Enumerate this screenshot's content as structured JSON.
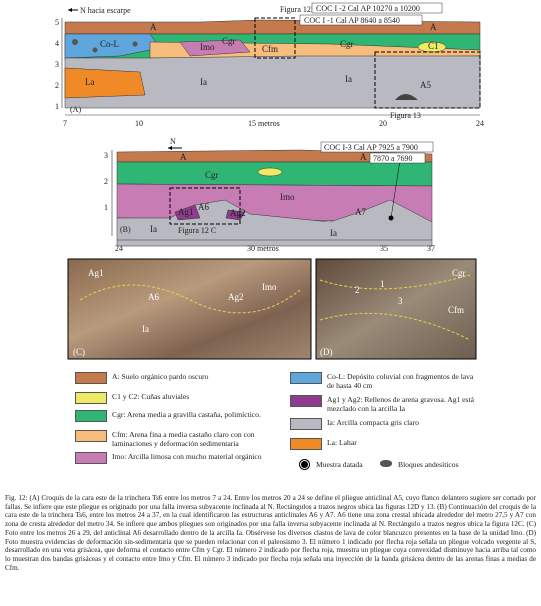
{
  "panel_a": {
    "label": "(A)",
    "north": "N hacia escarpe",
    "ref_d": "Figura 12D",
    "ref_13": "Figura 13",
    "sample_1": "COC I -2 Cal AP 10270 a 10200",
    "sample_2": "COC I -1 Cal AP 8640 a 8540",
    "units": [
      "Co-L",
      "Imo",
      "Cgr",
      "Cfm",
      "Cgr",
      "C1",
      "Ia",
      "Ia",
      "La",
      "A",
      "A",
      "A5"
    ],
    "y_ticks": [
      "5",
      "4",
      "3",
      "2",
      "1"
    ],
    "x_ticks": [
      "7",
      "10",
      "15 metros",
      "20",
      "24"
    ]
  },
  "panel_b": {
    "label": "(B)",
    "north": "N",
    "ref_c": "Figura 12 C",
    "sample_1": "COC I-3 Cal AP 7925 a 7900",
    "sample_2": "7870 a 7690",
    "units": [
      "A",
      "A",
      "Cgr",
      "Imo",
      "Ag1",
      "A6",
      "Ag2",
      "A7",
      "Ia",
      "Ia"
    ],
    "y_ticks": [
      "3",
      "2",
      "1"
    ],
    "x_ticks": [
      "24",
      "30 metros",
      "35",
      "37"
    ]
  },
  "photo_c": {
    "label": "(C)",
    "units": [
      "Ag1",
      "A6",
      "Ag2",
      "Imo",
      "Ia"
    ]
  },
  "photo_d": {
    "label": "(D)",
    "units": [
      "Cgr",
      "Cfm",
      "1",
      "2",
      "3"
    ]
  },
  "legend": {
    "items": [
      {
        "label": "A: Suelo orgánico pardo oscuro",
        "color": "#c47a4c"
      },
      {
        "label": "C1 y C2: Cuñas aluviales",
        "color": "#eeea66"
      },
      {
        "label": "Cgr: Arena media a gravilla castaña, polimíctico.",
        "color": "#2fb674"
      },
      {
        "label": "Cfm: Arena fina a media castaño claro con con laminaciones y deformación sedimentaria",
        "color": "#f6bd7c"
      },
      {
        "label": "Imo: Arcilla limosa con mucho material orgánico",
        "color": "#c77cb4"
      },
      {
        "label": "Co-L: Depósito coluvial con fragmentos de lava de hasta 40 cm",
        "color": "#5ea6dc"
      },
      {
        "label": "Ag1 y Ag2: Rellenos de arena gravosa. Ag1 está mezclado con la arcilla Ia",
        "color": "#8e3c8e"
      },
      {
        "label": "Ia: Arcilla compacta gris claro",
        "color": "#b9b9c2"
      },
      {
        "label": "La: Lahar",
        "color": "#f08a26"
      }
    ],
    "sample": "Muestra datada",
    "blocks": "Bloques andesíticos"
  },
  "caption": "Fig. 12: (A) Croquis de la cara este de la trinchera Ts6 entre los metros 7 a 24. Entre los metros 20 a 24 se define el pliegue anticlinal A5, cuyo flanco delantero sugiere ser cortado por fallas. Se infiere que este pliegue es originado por una falla inversa subyacente inclinada al N. Rectángulos a trazos negros ubica las figuras 12D y 13. (B) Continuación del croquis de la cara este de la trinchera Ts6, entre los metros 24 a 37, en la cual identificaron las estructuras anticlinales A6 y A7. A6 tiene una zona crestal ubicada alrededor del metro 27,5 y A7 con zona de cresta alrededor del metro 34. Se infiere que ambos pliegues son originados por una falla inversa subyacente inclinada al N. Rectángulo a trazos negros ubica la figura 12C. (C) Foto entre los metros 26 a 29, del anticlinal A6 desarrollado dentro de la arcilla Ia. Obsérvese los diversos clastos de lava de color blancuzco presentes en la base de la unidad Imo. (D) Foto muestra evidencias de deformación sin-sedimentaria que se pueden relacionar con el paleosismo 3. El número 1 indicado por flecha roja señala un pliegue volcado vergente al S, desarrollado en una veta grisácea, que deforma el contacto entre Cfm y Cgr. El número 2 indicado por flecha roja, muestra un pliegue cuya convexidad disminuye hacia arriba tal como lo muestran dos bandas grisáceas y el contacto entre Imo y Cfm. El número 3 indicado por flecha roja señala una inyección de la banda grisácea dentro de las arenas finas a medias de Cfm."
}
